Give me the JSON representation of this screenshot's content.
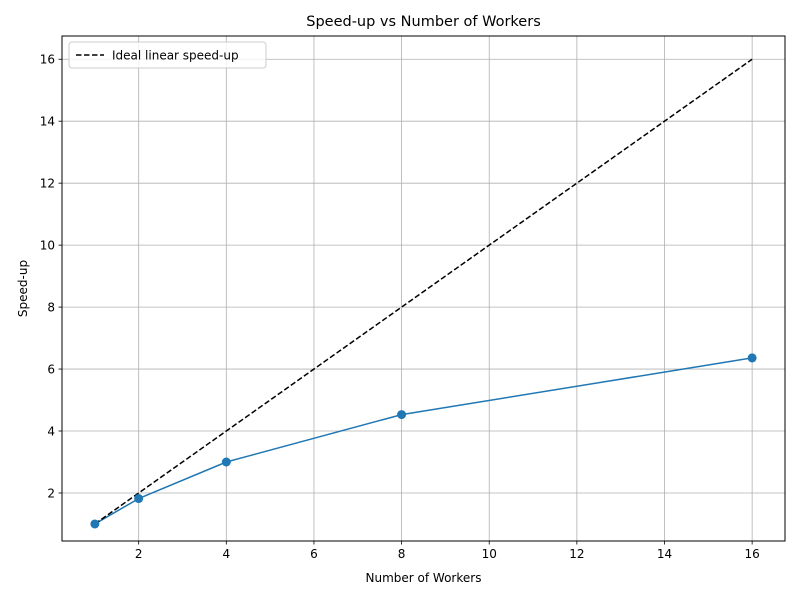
{
  "chart_data": {
    "type": "line",
    "title": "Speed-up vs Number of Workers",
    "xlabel": "Number of Workers",
    "ylabel": "Speed-up",
    "xlim": [
      0.25,
      16.75
    ],
    "ylim": [
      0.45,
      16.75
    ],
    "xticks": [
      2,
      4,
      6,
      8,
      10,
      12,
      14,
      16
    ],
    "yticks": [
      2,
      4,
      6,
      8,
      10,
      12,
      14,
      16
    ],
    "grid": true,
    "legend_position": "top-left",
    "series": [
      {
        "kind": "measured",
        "color": "#1f77b4",
        "marker": "circle",
        "x": [
          1,
          2,
          4,
          8,
          16
        ],
        "y": [
          1.0,
          1.82,
          3.0,
          4.53,
          6.36
        ]
      },
      {
        "kind": "ideal",
        "name": "Ideal linear speed-up",
        "color": "#000000",
        "dashed": true,
        "x": [
          1,
          2,
          4,
          8,
          16
        ],
        "y": [
          1,
          2,
          4,
          8,
          16
        ]
      }
    ]
  }
}
